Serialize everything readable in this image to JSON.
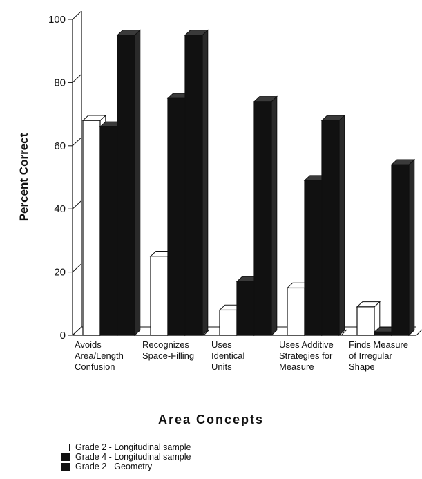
{
  "chart_data": {
    "type": "bar",
    "title": "",
    "xlabel": "Area Concepts",
    "ylabel": "Percent Correct",
    "ylim": [
      0,
      100
    ],
    "yticks": [
      "0",
      "20",
      "40",
      "60",
      "80",
      "100"
    ],
    "grid": false,
    "legend_position": "bottom-left",
    "categories": [
      [
        "Avoids",
        "Area/Length",
        "Confusion"
      ],
      [
        "Recognizes",
        "Space-Filling"
      ],
      [
        "Uses",
        "Identical",
        "Units"
      ],
      [
        "Uses Additive",
        "Strategies for",
        "Measure"
      ],
      [
        "Finds Measure",
        "of Irregular",
        "Shape"
      ]
    ],
    "series": [
      {
        "name": "Grade 2 - Longitudinal sample",
        "color": "#ffffff",
        "values": [
          68,
          25,
          8,
          15,
          9
        ]
      },
      {
        "name": "Grade 4 - Longitudinal sample",
        "color": "#111111",
        "values": [
          66,
          75,
          17,
          49,
          1
        ]
      },
      {
        "name": "Grade 2 - Geometry",
        "color": "#111111",
        "values": [
          95,
          95,
          74,
          68,
          54
        ]
      }
    ]
  }
}
